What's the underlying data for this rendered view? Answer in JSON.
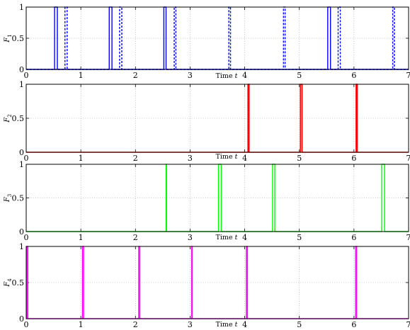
{
  "chart_data": [
    {
      "type": "line",
      "ylabel": "F",
      "ylabel_sub": "1",
      "xlabel": "Time t",
      "xlim": [
        0,
        7
      ],
      "ylim": [
        0,
        1
      ],
      "xticks": [
        0,
        1,
        2,
        3,
        4,
        5,
        6,
        7
      ],
      "yticks": [
        0,
        0.5,
        1
      ],
      "ytick_labels": [
        "0",
        "0.5",
        "1"
      ],
      "grid": true,
      "series": [
        {
          "color": "#0000ff",
          "style": "solid",
          "pulses": [
            [
              0.52,
              0.57
            ],
            [
              1.52,
              1.57
            ],
            [
              2.52,
              2.56
            ],
            [
              5.52,
              5.57
            ]
          ]
        },
        {
          "color": "#0000ff",
          "style": "dashed",
          "pulses": [
            [
              0.71,
              0.75
            ],
            [
              1.71,
              1.75
            ],
            [
              2.71,
              2.74
            ],
            [
              3.71,
              3.74
            ],
            [
              4.71,
              4.74
            ],
            [
              5.71,
              5.75
            ],
            [
              6.71,
              6.74
            ]
          ]
        }
      ]
    },
    {
      "type": "line",
      "ylabel": "F",
      "ylabel_sub": "2",
      "xlabel": "Time t",
      "xlim": [
        0,
        7
      ],
      "ylim": [
        0,
        1
      ],
      "xticks": [
        0,
        1,
        2,
        3,
        4,
        5,
        6,
        7
      ],
      "yticks": [
        0,
        0.5,
        1
      ],
      "ytick_labels": [
        "0",
        "0.5",
        "1"
      ],
      "grid": true,
      "series": [
        {
          "color": "#ff0000",
          "style": "solid",
          "pulses": [
            [
              4.06,
              4.08
            ],
            [
              5.02,
              5.05
            ],
            [
              6.04,
              6.06
            ]
          ]
        }
      ]
    },
    {
      "type": "line",
      "ylabel": "F",
      "ylabel_sub": "3",
      "xlabel": "Time t",
      "xlim": [
        0,
        7
      ],
      "ylim": [
        0,
        1
      ],
      "xticks": [
        0,
        1,
        2,
        3,
        4,
        5,
        6,
        7
      ],
      "yticks": [
        0,
        0.5,
        1
      ],
      "ytick_labels": [
        "0",
        "0.5",
        "1"
      ],
      "grid": true,
      "series": [
        {
          "color": "#00ff00",
          "style": "solid",
          "pulses": [
            [
              2.56,
              2.57
            ],
            [
              3.52,
              3.57
            ],
            [
              4.51,
              4.55
            ],
            [
              6.51,
              6.56
            ]
          ]
        }
      ]
    },
    {
      "type": "line",
      "ylabel": "F",
      "ylabel_sub": "4",
      "xlabel": "Time t",
      "xlim": [
        0,
        7
      ],
      "ylim": [
        0,
        1
      ],
      "xticks": [
        0,
        1,
        2,
        3,
        4,
        5,
        6,
        7
      ],
      "yticks": [
        0,
        0.5,
        1
      ],
      "ytick_labels": [
        "0",
        "0.5",
        "1"
      ],
      "grid": true,
      "series": [
        {
          "color": "#ff00ff",
          "style": "solid",
          "pulses": [
            [
              0.01,
              0.03
            ],
            [
              1.03,
              1.05
            ],
            [
              2.06,
              2.08
            ],
            [
              3.03,
              3.04
            ],
            [
              4.03,
              4.05
            ],
            [
              6.03,
              6.05
            ]
          ]
        }
      ]
    }
  ]
}
